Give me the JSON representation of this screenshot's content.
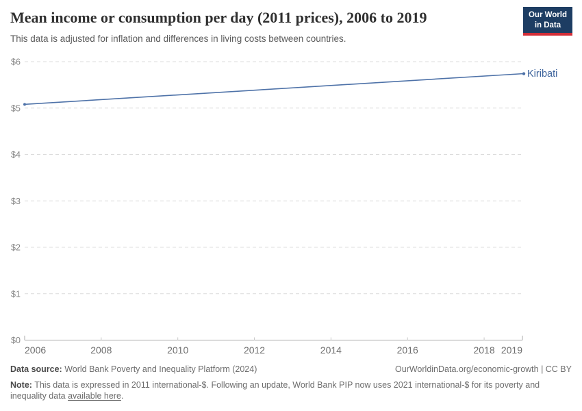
{
  "header": {
    "title": "Mean income or consumption per day (2011 prices), 2006 to 2019",
    "subtitle": "This data is adjusted for inflation and differences in living costs between countries."
  },
  "logo": {
    "line1": "Our World",
    "line2": "in Data"
  },
  "chart_data": {
    "type": "line",
    "title": "Mean income or consumption per day (2011 prices), 2006 to 2019",
    "xlabel": "",
    "ylabel": "",
    "xlim": [
      2006,
      2019
    ],
    "ylim": [
      0,
      6
    ],
    "grid": "horizontal-dashed",
    "legend_position": "end-of-line-label",
    "xticks": [
      2006,
      2008,
      2010,
      2012,
      2014,
      2016,
      2018,
      2019
    ],
    "yticks": [
      {
        "value": 0,
        "label": "$0"
      },
      {
        "value": 1,
        "label": "$1"
      },
      {
        "value": 2,
        "label": "$2"
      },
      {
        "value": 3,
        "label": "$3"
      },
      {
        "value": 4,
        "label": "$4"
      },
      {
        "value": 5,
        "label": "$5"
      },
      {
        "value": 6,
        "label": "$6"
      }
    ],
    "series": [
      {
        "name": "Kiribati",
        "x": [
          2006,
          2019
        ],
        "y": [
          5.08,
          5.74
        ],
        "color": "#4e72a8",
        "label_color": "#3d639c"
      }
    ]
  },
  "colors": {
    "line": "#4e72a8",
    "entity_label": "#3d639c",
    "grid": "#dcdcdc",
    "axis": "#a8a8a8",
    "ytick_text": "#858585",
    "xtick_text": "#6e6e6e",
    "logo_bg": "#1d3d63",
    "logo_accent": "#d22d37"
  },
  "footer": {
    "source_label": "Data source:",
    "source_text": " World Bank Poverty and Inequality Platform (2024)",
    "credit": "OurWorldinData.org/economic-growth | CC BY",
    "note_label": "Note:",
    "note_text_1": " This data is expressed in 2011 international-$. Following an update, World Bank PIP now uses 2021 international-$ for its poverty and inequality data ",
    "note_link": "available here",
    "note_text_2": "."
  }
}
